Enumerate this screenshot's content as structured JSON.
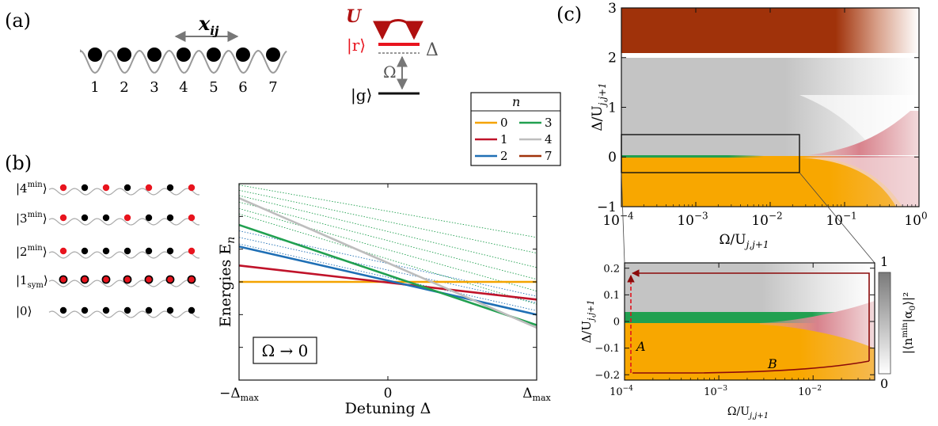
{
  "panel_labels": {
    "a": "(a)",
    "b": "(b)",
    "c": "(c)"
  },
  "lattice": {
    "site_numbers": [
      "1",
      "2",
      "3",
      "4",
      "5",
      "6",
      "7"
    ],
    "distance_label": "x",
    "distance_sub": "ij"
  },
  "levels": {
    "interaction_label": "U",
    "rydberg_label": "|r⟩",
    "ground_label": "|g⟩",
    "rabi_label": "Ω",
    "detuning_label": "Δ"
  },
  "legend": {
    "title": "n",
    "entries": [
      {
        "label": "0",
        "color": "#f4a300"
      },
      {
        "label": "1",
        "color": "#c0132a"
      },
      {
        "label": "2",
        "color": "#1f6fb5"
      },
      {
        "label": "3",
        "color": "#21a050"
      },
      {
        "label": "4",
        "color": "#bdbdbd"
      },
      {
        "label": "7",
        "color": "#a0320a"
      }
    ]
  },
  "states": [
    {
      "label": "|4",
      "sup": "min",
      "sub": "",
      "pattern": [
        1,
        0,
        1,
        0,
        1,
        0,
        1
      ]
    },
    {
      "label": "|3",
      "sup": "min",
      "sub": "",
      "pattern": [
        1,
        0,
        0,
        1,
        0,
        0,
        1
      ]
    },
    {
      "label": "|2",
      "sup": "min",
      "sub": "",
      "pattern": [
        1,
        0,
        0,
        0,
        0,
        0,
        1
      ]
    },
    {
      "label": "|1",
      "sup": "",
      "sub": "sym",
      "pattern": [
        2,
        2,
        2,
        2,
        2,
        2,
        2
      ]
    },
    {
      "label": "|0",
      "sup": "",
      "sub": "",
      "pattern": [
        0,
        0,
        0,
        0,
        0,
        0,
        0
      ]
    }
  ],
  "colors": {
    "n0": "#f4a300",
    "n1": "#c0132a",
    "n2": "#1f6fb5",
    "n3": "#21a050",
    "n4": "#bdbdbd",
    "n7": "#a0320a",
    "pink": "#d9828c",
    "path": "#8b0a0a",
    "atom_red": "#e8141e"
  },
  "chart_data": [
    {
      "type": "line",
      "panel": "b",
      "xlabel": "Detuning Δ",
      "ylabel": "Energies E",
      "ylabel_sub": "n",
      "xtick_labels": [
        "−Δ",
        "0",
        "Δ"
      ],
      "xtick_sub": "max",
      "xlim": [
        -1,
        1
      ],
      "ylim": [
        -0.75,
        0.75
      ],
      "annotation": "Ω → 0",
      "series": [
        {
          "name": "0",
          "color": "#f4a300",
          "x": [
            -1,
            1
          ],
          "y": [
            0,
            0
          ]
        },
        {
          "name": "1",
          "color": "#c0132a",
          "x": [
            -1,
            1
          ],
          "y": [
            0.125,
            -0.135
          ]
        },
        {
          "name": "2",
          "color": "#1f6fb5",
          "x": [
            -1,
            1
          ],
          "y": [
            0.27,
            -0.25
          ]
        },
        {
          "name": "3",
          "color": "#21a050",
          "x": [
            -1,
            1
          ],
          "y": [
            0.435,
            -0.33
          ]
        },
        {
          "name": "4",
          "color": "#bdbdbd",
          "x": [
            -1,
            1
          ],
          "y": [
            0.64,
            -0.35
          ]
        }
      ],
      "dotted_series": [
        {
          "color": "#1f6fb5",
          "x": [
            -1,
            1
          ],
          "y": [
            0.29,
            -0.22
          ]
        },
        {
          "color": "#1f6fb5",
          "x": [
            -1,
            1
          ],
          "y": [
            0.34,
            -0.16
          ]
        },
        {
          "color": "#1f6fb5",
          "x": [
            -1,
            1
          ],
          "y": [
            0.39,
            -0.11
          ]
        },
        {
          "color": "#21a050",
          "x": [
            -1,
            1
          ],
          "y": [
            0.52,
            -0.17
          ]
        },
        {
          "color": "#21a050",
          "x": [
            -1,
            1
          ],
          "y": [
            0.56,
            -0.07
          ]
        },
        {
          "color": "#21a050",
          "x": [
            -1,
            1
          ],
          "y": [
            0.61,
            0.02
          ]
        },
        {
          "color": "#21a050",
          "x": [
            -1,
            1
          ],
          "y": [
            0.66,
            0.11
          ]
        },
        {
          "color": "#21a050",
          "x": [
            -1,
            1
          ],
          "y": [
            0.7,
            0.22
          ]
        },
        {
          "color": "#21a050",
          "x": [
            -1,
            1
          ],
          "y": [
            0.74,
            0.34
          ]
        }
      ]
    },
    {
      "type": "heatmap",
      "panel": "c-top",
      "xlabel": "Ω/U",
      "ylabel": "Δ/U",
      "label_sub": "j,j+1",
      "xscale": "log",
      "xlim": [
        0.0001,
        1
      ],
      "ylim": [
        -1,
        3
      ],
      "xtick_labels": [
        "10",
        "10",
        "10",
        "10",
        "10"
      ],
      "xtick_exponents": [
        "−4",
        "−3",
        "−2",
        "−1",
        "0"
      ],
      "xtick_values": [
        0.0001,
        0.001,
        0.01,
        0.1,
        1
      ],
      "ytick_labels": [
        "3",
        "2",
        "1",
        "0",
        "−1"
      ],
      "ytick_values": [
        3,
        2,
        1,
        0,
        -1
      ],
      "regions": [
        {
          "phase": "7",
          "y_range": [
            2,
            3
          ]
        },
        {
          "phase": "4",
          "y_range": [
            0,
            2
          ]
        },
        {
          "phase": "3",
          "y_range": [
            -0.02,
            0.02
          ]
        },
        {
          "phase": "0",
          "y_range": [
            -1,
            0
          ]
        }
      ],
      "inset_box": {
        "x": [
          0.0001,
          0.025
        ],
        "y": [
          -0.3,
          0.45
        ]
      }
    },
    {
      "type": "heatmap",
      "panel": "c-bottom",
      "xlabel": "Ω/U",
      "ylabel": "Δ/U",
      "label_sub": "j,j+1",
      "xscale": "log",
      "xlim": [
        0.0001,
        0.045
      ],
      "ylim": [
        -0.22,
        0.22
      ],
      "xtick_labels": [
        "10",
        "10",
        "10"
      ],
      "xtick_exponents": [
        "−4",
        "−3",
        "−2"
      ],
      "xtick_values": [
        0.0001,
        0.001,
        0.01
      ],
      "ytick_labels": [
        "0.2",
        "0.1",
        "0",
        "−0.1",
        "−0.2"
      ],
      "ytick_values": [
        0.2,
        0.1,
        0,
        -0.1,
        -0.2
      ],
      "path_labels": [
        "A",
        "B"
      ],
      "colorbar": {
        "label": "|⟨n",
        "label_sup": "min",
        "label_mid": "|α",
        "label_sub": "0",
        "label_end": "⟩|²",
        "max_label": "1",
        "min_label": "0"
      }
    }
  ]
}
